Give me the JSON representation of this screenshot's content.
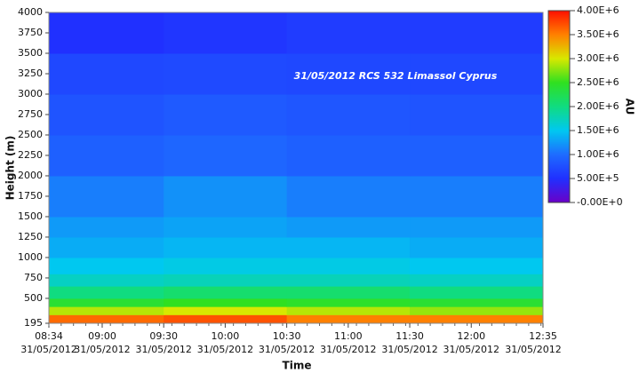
{
  "chart_data": {
    "type": "heatmap",
    "annotation": "31/05/2012 RCS 532 Limassol Cyprus",
    "xlabel": "Time",
    "ylabel": "Height (m)",
    "colorbar_label": "AU",
    "x_bins": [
      514,
      570,
      630,
      690,
      755
    ],
    "y_bins": [
      195,
      300,
      400,
      500,
      650,
      800,
      1000,
      1250,
      1500,
      2000,
      2500,
      3000,
      3500,
      4000
    ],
    "z": [
      [
        3600000,
        3700000,
        3500000,
        3500000
      ],
      [
        2900000,
        3000000,
        2900000,
        2800000
      ],
      [
        2400000,
        2500000,
        2450000,
        2400000
      ],
      [
        2000000,
        2100000,
        2100000,
        2000000
      ],
      [
        1700000,
        1750000,
        1750000,
        1700000
      ],
      [
        1500000,
        1550000,
        1550000,
        1500000
      ],
      [
        1350000,
        1400000,
        1400000,
        1350000
      ],
      [
        1250000,
        1300000,
        1250000,
        1250000
      ],
      [
        1100000,
        1200000,
        1100000,
        1100000
      ],
      [
        900000,
        950000,
        900000,
        900000
      ],
      [
        800000,
        850000,
        820000,
        800000
      ],
      [
        700000,
        720000,
        700000,
        700000
      ],
      [
        500000,
        550000,
        600000,
        600000
      ]
    ],
    "xlim": [
      514,
      755
    ],
    "xticks": [
      {
        "value": 514,
        "label": "08:34",
        "date": "31/05/2012"
      },
      {
        "value": 540,
        "label": "09:00",
        "date": "31/05/2012"
      },
      {
        "value": 570,
        "label": "09:30",
        "date": "31/05/2012"
      },
      {
        "value": 600,
        "label": "10:00",
        "date": "31/05/2012"
      },
      {
        "value": 630,
        "label": "10:30",
        "date": "31/05/2012"
      },
      {
        "value": 660,
        "label": "11:00",
        "date": "31/05/2012"
      },
      {
        "value": 690,
        "label": "11:30",
        "date": "31/05/2012"
      },
      {
        "value": 720,
        "label": "12:00",
        "date": "31/05/2012"
      },
      {
        "value": 755,
        "label": "12:35",
        "date": "31/05/2012"
      }
    ],
    "ylim": [
      195,
      4000
    ],
    "yticks": [
      195,
      500,
      750,
      1000,
      1250,
      1500,
      1750,
      2000,
      2250,
      2500,
      2750,
      3000,
      3250,
      3500,
      3750,
      4000
    ],
    "clim": [
      0,
      4000000
    ],
    "colorscale": [
      "#6a00c8",
      "#2030ff",
      "#1e6cff",
      "#00c8f0",
      "#10dc80",
      "#30e020",
      "#d8e800",
      "#ff8000",
      "#ff1000"
    ],
    "cticks": [
      {
        "value": 0,
        "label": "-0.00E+0"
      },
      {
        "value": 500000,
        "label": "5.00E+5"
      },
      {
        "value": 1000000,
        "label": "1.00E+6"
      },
      {
        "value": 1500000,
        "label": "1.50E+6"
      },
      {
        "value": 2000000,
        "label": "2.00E+6"
      },
      {
        "value": 2500000,
        "label": "2.50E+6"
      },
      {
        "value": 3000000,
        "label": "3.00E+6"
      },
      {
        "value": 3500000,
        "label": "3.50E+6"
      },
      {
        "value": 4000000,
        "label": "4.00E+6"
      }
    ]
  }
}
